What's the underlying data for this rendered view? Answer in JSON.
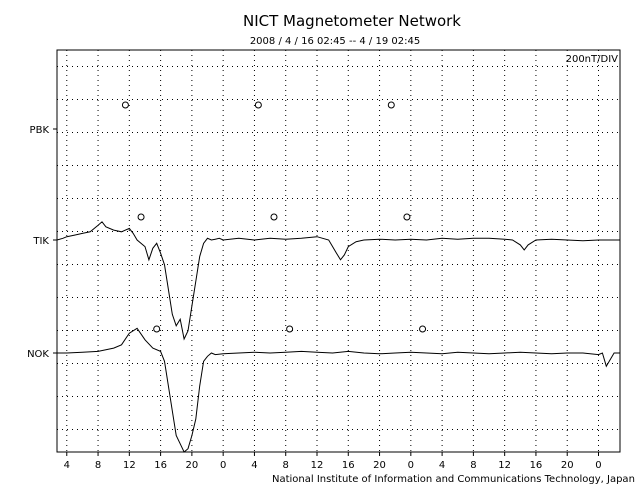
{
  "chart_data": {
    "type": "line",
    "title": "NICT Magnetometer Network",
    "subtitle": "2008 / 4 / 16   02:45 --  4 / 19   02:45",
    "scale_label": "200nT/DIV",
    "footer": "National Institute of Information and Communications Technology, Japan",
    "x_tick_labels": [
      "4",
      "8",
      "12",
      "16",
      "20",
      "0",
      "4",
      "8",
      "12",
      "16",
      "20",
      "0",
      "4",
      "8",
      "12",
      "16",
      "20",
      "0"
    ],
    "x_label_first_hour": 4,
    "x_label_step_hours": 4,
    "x_range_hours": [
      2.75,
      74.75
    ],
    "grid": true,
    "stations": [
      "PBK",
      "TIK",
      "NOK"
    ],
    "series": [
      {
        "name": "TIK",
        "values_hours": [
          2.75,
          3.5,
          4.0,
          5.0,
          6.0,
          7.0,
          8.0,
          8.5,
          9.0,
          10.0,
          11.0,
          12.0,
          12.5,
          13.0,
          14.0,
          14.5,
          15.0,
          15.5,
          16.0,
          16.5,
          17.0,
          17.5,
          18.0,
          18.5,
          19.0,
          19.5,
          20.0,
          20.5,
          21.0,
          21.5,
          22.0,
          22.5,
          23.0,
          23.5,
          24.0,
          26.0,
          28.0,
          30.0,
          32.0,
          34.0,
          36.0,
          37.5,
          38.0,
          38.5,
          39.0,
          39.5,
          40.0,
          41.0,
          42.0,
          44.0,
          46.0,
          48.0,
          50.0,
          52.0,
          54.0,
          56.0,
          58.0,
          60.0,
          61.0,
          62.0,
          62.5,
          63.0,
          64.0,
          66.0,
          68.0,
          70.0,
          72.0,
          74.75
        ],
        "values_div": [
          0.0,
          0.1,
          0.2,
          0.3,
          0.4,
          0.5,
          0.9,
          1.1,
          0.8,
          0.6,
          0.5,
          0.7,
          0.4,
          0.0,
          -0.4,
          -1.2,
          -0.5,
          -0.2,
          -0.8,
          -1.5,
          -3.0,
          -4.5,
          -5.2,
          -4.8,
          -6.0,
          -5.5,
          -4.0,
          -2.5,
          -1.0,
          -0.2,
          0.1,
          0.0,
          0.05,
          0.1,
          0.0,
          0.1,
          0.0,
          0.1,
          0.05,
          0.1,
          0.2,
          0.0,
          -0.4,
          -0.8,
          -1.2,
          -0.9,
          -0.4,
          -0.1,
          0.0,
          0.05,
          0.0,
          0.05,
          0.0,
          0.1,
          0.05,
          0.1,
          0.1,
          0.05,
          0.0,
          -0.3,
          -0.6,
          -0.3,
          0.0,
          0.05,
          0.0,
          -0.05,
          0.0,
          0.0
        ]
      },
      {
        "name": "NOK",
        "values_hours": [
          2.75,
          4.0,
          6.0,
          8.0,
          10.0,
          11.0,
          12.0,
          13.0,
          14.0,
          15.0,
          16.0,
          16.5,
          17.0,
          17.5,
          18.0,
          18.5,
          19.0,
          19.5,
          20.0,
          20.5,
          21.0,
          21.5,
          22.0,
          22.5,
          23.0,
          24.0,
          26.0,
          28.0,
          30.0,
          32.0,
          34.0,
          36.0,
          38.0,
          40.0,
          42.0,
          44.0,
          46.0,
          48.0,
          50.0,
          52.0,
          54.0,
          56.0,
          58.0,
          60.0,
          62.0,
          64.0,
          66.0,
          68.0,
          70.0,
          72.0,
          72.5,
          73.0,
          74.0,
          74.75
        ],
        "values_div": [
          0.0,
          0.0,
          0.05,
          0.1,
          0.3,
          0.5,
          1.2,
          1.5,
          0.8,
          0.3,
          0.1,
          -0.5,
          -2.0,
          -3.5,
          -5.0,
          -5.5,
          -6.0,
          -5.8,
          -5.0,
          -4.0,
          -2.0,
          -0.5,
          -0.2,
          0.0,
          -0.1,
          -0.05,
          0.0,
          0.05,
          0.0,
          0.05,
          0.1,
          0.05,
          0.0,
          0.1,
          0.0,
          -0.05,
          0.0,
          0.05,
          0.0,
          -0.05,
          0.05,
          0.0,
          -0.05,
          0.0,
          0.05,
          0.0,
          -0.05,
          0.0,
          0.0,
          -0.1,
          0.0,
          -0.8,
          0.0,
          0.0
        ]
      }
    ],
    "markers": {
      "PBK_row_hours": [
        11.5,
        28.5,
        45.5
      ],
      "TIK_row_hours": [
        13.5,
        30.5,
        47.5
      ],
      "NOK_row_hours": [
        15.5,
        32.5,
        49.5
      ]
    }
  }
}
